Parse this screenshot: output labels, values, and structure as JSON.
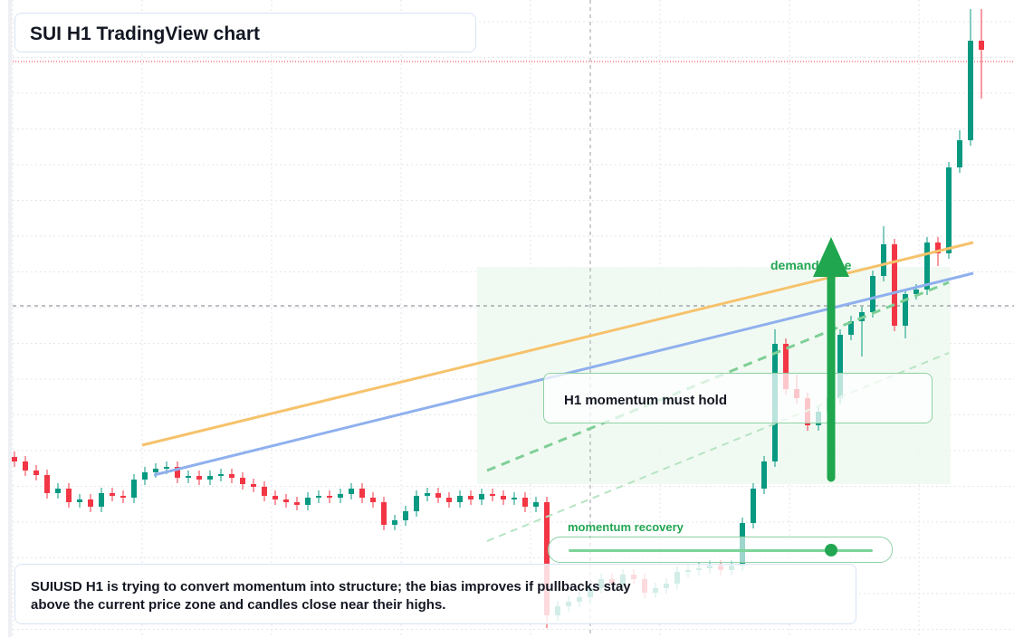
{
  "header": {
    "title": "SUI H1 TradingView chart"
  },
  "chart_data": {
    "type": "candlestick",
    "ylim": [
      0,
      7.04
    ],
    "up_color": "#089981",
    "down_color": "#f23645",
    "open": [
      1.99,
      1.94,
      1.84,
      1.79,
      1.59,
      1.64,
      1.49,
      1.52,
      1.44,
      1.59,
      1.56,
      1.54,
      1.74,
      1.82,
      1.86,
      1.88,
      1.76,
      1.78,
      1.74,
      1.78,
      1.8,
      1.76,
      1.69,
      1.66,
      1.56,
      1.52,
      1.49,
      1.46,
      1.54,
      1.56,
      1.54,
      1.58,
      1.64,
      1.54,
      1.49,
      1.24,
      1.29,
      1.39,
      1.56,
      1.59,
      1.54,
      1.49,
      1.56,
      1.52,
      1.58,
      1.56,
      1.52,
      1.54,
      1.44,
      1.49,
      0.24,
      0.34,
      0.39,
      0.44,
      0.54,
      0.64,
      0.59,
      0.69,
      0.64,
      0.49,
      0.54,
      0.59,
      0.72,
      0.74,
      0.76,
      0.79,
      0.74,
      0.79,
      1.26,
      1.64,
      1.94,
      3.24,
      2.74,
      2.64,
      2.34,
      2.49,
      2.64,
      3.34,
      3.49,
      3.59,
      3.99,
      4.34,
      3.44,
      3.79,
      3.84,
      4.36,
      4.24,
      5.19,
      5.49,
      6.59
    ],
    "high": [
      2.05,
      2.0,
      1.9,
      1.85,
      1.7,
      1.7,
      1.58,
      1.58,
      1.65,
      1.65,
      1.62,
      1.8,
      1.88,
      1.92,
      1.94,
      1.94,
      1.84,
      1.84,
      1.84,
      1.86,
      1.86,
      1.82,
      1.75,
      1.72,
      1.62,
      1.58,
      1.55,
      1.6,
      1.62,
      1.62,
      1.64,
      1.7,
      1.7,
      1.6,
      1.55,
      1.35,
      1.45,
      1.62,
      1.65,
      1.65,
      1.6,
      1.62,
      1.62,
      1.64,
      1.64,
      1.62,
      1.6,
      1.6,
      1.55,
      1.55,
      0.4,
      0.45,
      0.5,
      0.6,
      0.7,
      0.7,
      0.75,
      0.75,
      0.7,
      0.6,
      0.65,
      0.78,
      0.8,
      0.82,
      0.85,
      0.85,
      0.85,
      1.32,
      1.7,
      2.0,
      3.4,
      3.3,
      2.9,
      2.7,
      2.55,
      2.7,
      3.4,
      3.55,
      3.65,
      4.05,
      4.54,
      4.4,
      3.85,
      3.9,
      4.42,
      4.42,
      5.25,
      5.6,
      6.94,
      6.94
    ],
    "low": [
      1.88,
      1.78,
      1.73,
      1.53,
      1.53,
      1.43,
      1.43,
      1.38,
      1.38,
      1.5,
      1.48,
      1.48,
      1.68,
      1.76,
      1.8,
      1.7,
      1.7,
      1.68,
      1.68,
      1.72,
      1.7,
      1.63,
      1.6,
      1.5,
      1.46,
      1.43,
      1.4,
      1.4,
      1.48,
      1.48,
      1.48,
      1.52,
      1.48,
      1.43,
      1.18,
      1.18,
      1.23,
      1.33,
      1.5,
      1.48,
      1.43,
      1.43,
      1.46,
      1.46,
      1.5,
      1.46,
      1.46,
      1.38,
      1.38,
      0.1,
      0.18,
      0.28,
      0.33,
      0.38,
      0.48,
      0.53,
      0.53,
      0.58,
      0.43,
      0.43,
      0.48,
      0.53,
      0.66,
      0.68,
      0.7,
      0.68,
      0.68,
      0.73,
      1.2,
      1.58,
      1.88,
      2.68,
      2.58,
      2.28,
      2.28,
      2.43,
      2.58,
      3.28,
      3.1,
      3.53,
      3.93,
      3.38,
      3.3,
      3.73,
      3.78,
      4.1,
      4.18,
      5.13,
      5.43,
      5.95
    ],
    "close": [
      1.94,
      1.84,
      1.79,
      1.59,
      1.64,
      1.49,
      1.52,
      1.44,
      1.59,
      1.56,
      1.54,
      1.74,
      1.82,
      1.86,
      1.88,
      1.76,
      1.78,
      1.74,
      1.78,
      1.8,
      1.76,
      1.69,
      1.66,
      1.56,
      1.52,
      1.49,
      1.46,
      1.54,
      1.56,
      1.54,
      1.58,
      1.64,
      1.54,
      1.49,
      1.24,
      1.29,
      1.39,
      1.56,
      1.59,
      1.54,
      1.49,
      1.56,
      1.52,
      1.58,
      1.56,
      1.52,
      1.54,
      1.44,
      1.49,
      0.24,
      0.34,
      0.39,
      0.44,
      0.54,
      0.64,
      0.59,
      0.69,
      0.64,
      0.49,
      0.54,
      0.59,
      0.72,
      0.74,
      0.76,
      0.79,
      0.74,
      0.79,
      1.26,
      1.64,
      1.94,
      3.24,
      2.74,
      2.64,
      2.34,
      2.49,
      2.64,
      3.34,
      3.49,
      3.59,
      3.99,
      4.34,
      3.44,
      3.79,
      3.84,
      4.36,
      4.24,
      5.19,
      5.49,
      6.59,
      6.49
    ]
  },
  "annotations": {
    "zone_label": "demand zone",
    "callout": "H1 momentum must hold",
    "recovery_label": "momentum recovery",
    "note": "SUIUSD H1 is trying to convert momentum into structure; the bias improves if pullbacks stay above the current price zone and candles close near their highs."
  }
}
